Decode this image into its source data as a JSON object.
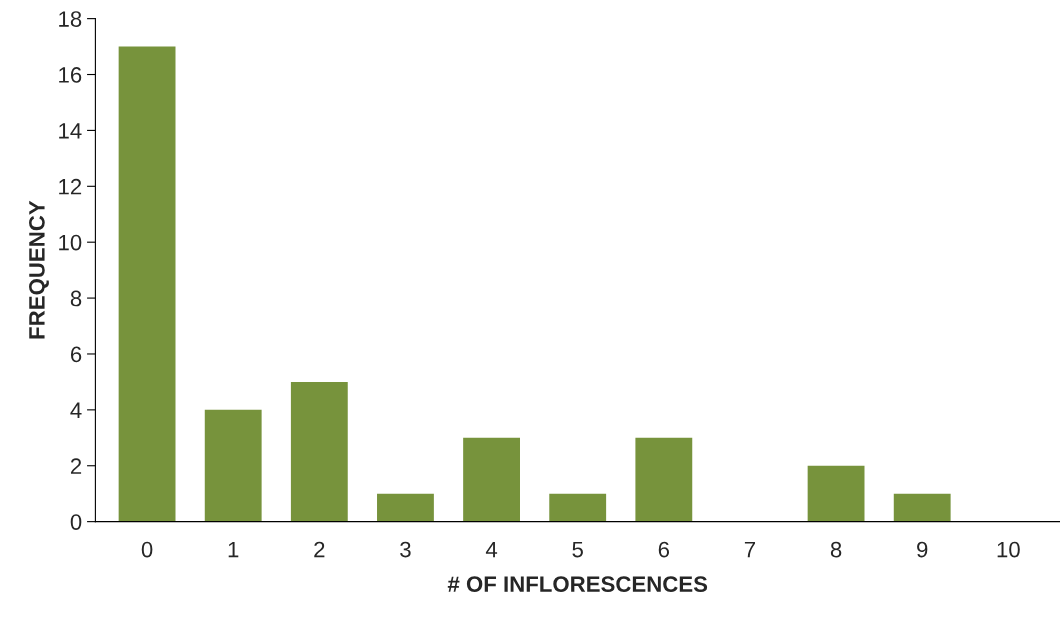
{
  "chart_data": {
    "type": "bar",
    "xlabel": "# OF INFLORESCENCES",
    "ylabel": "FREQUENCY",
    "categories": [
      "0",
      "1",
      "2",
      "3",
      "4",
      "5",
      "6",
      "7",
      "8",
      "9",
      "10"
    ],
    "values": [
      17,
      4,
      5,
      1,
      3,
      1,
      3,
      0,
      2,
      1,
      0
    ],
    "color": "#77933c",
    "ylim": [
      0,
      18
    ],
    "yticks": [
      0,
      2,
      4,
      6,
      8,
      10,
      12,
      14,
      16,
      18
    ],
    "grid": false,
    "legend": false
  }
}
